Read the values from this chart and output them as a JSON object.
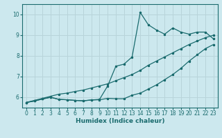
{
  "xlabel": "Humidex (Indice chaleur)",
  "bg_color": "#cce8ee",
  "grid_color": "#b8d4da",
  "line_color": "#1a6b6e",
  "xlim": [
    -0.5,
    23.5
  ],
  "ylim": [
    5.5,
    10.5
  ],
  "xticks": [
    0,
    1,
    2,
    3,
    4,
    5,
    6,
    7,
    8,
    9,
    10,
    11,
    12,
    13,
    14,
    15,
    16,
    17,
    18,
    19,
    20,
    21,
    22,
    23
  ],
  "yticks": [
    6,
    7,
    8,
    9,
    10
  ],
  "line1_x": [
    0,
    1,
    2,
    3,
    4,
    5,
    6,
    7,
    8,
    9,
    10,
    11,
    12,
    13,
    14,
    15,
    16,
    17,
    18,
    19,
    20,
    21,
    22,
    23
  ],
  "line1_y": [
    5.75,
    5.82,
    5.92,
    6.0,
    5.9,
    5.88,
    5.85,
    5.83,
    5.87,
    5.88,
    5.95,
    5.93,
    5.93,
    6.1,
    6.2,
    6.4,
    6.6,
    6.85,
    7.1,
    7.4,
    7.75,
    8.05,
    8.35,
    8.55
  ],
  "line2_x": [
    0,
    1,
    2,
    3,
    4,
    5,
    6,
    7,
    8,
    9,
    10,
    11,
    12,
    13,
    14,
    15,
    16,
    17,
    18,
    19,
    20,
    21,
    22,
    23
  ],
  "line2_y": [
    5.75,
    5.82,
    5.92,
    6.0,
    5.9,
    5.88,
    5.85,
    5.83,
    5.87,
    5.9,
    6.55,
    7.5,
    7.6,
    7.95,
    10.1,
    9.5,
    9.25,
    9.05,
    9.35,
    9.15,
    9.05,
    9.15,
    9.15,
    8.82
  ],
  "line3_x": [
    0,
    1,
    2,
    3,
    4,
    5,
    6,
    7,
    8,
    9,
    10,
    11,
    12,
    13,
    14,
    15,
    16,
    17,
    18,
    19,
    20,
    21,
    22,
    23
  ],
  "line3_y": [
    5.75,
    5.85,
    5.95,
    6.05,
    6.15,
    6.2,
    6.28,
    6.35,
    6.45,
    6.55,
    6.65,
    6.8,
    6.95,
    7.1,
    7.3,
    7.55,
    7.75,
    7.95,
    8.15,
    8.35,
    8.55,
    8.72,
    8.88,
    9.0
  ]
}
